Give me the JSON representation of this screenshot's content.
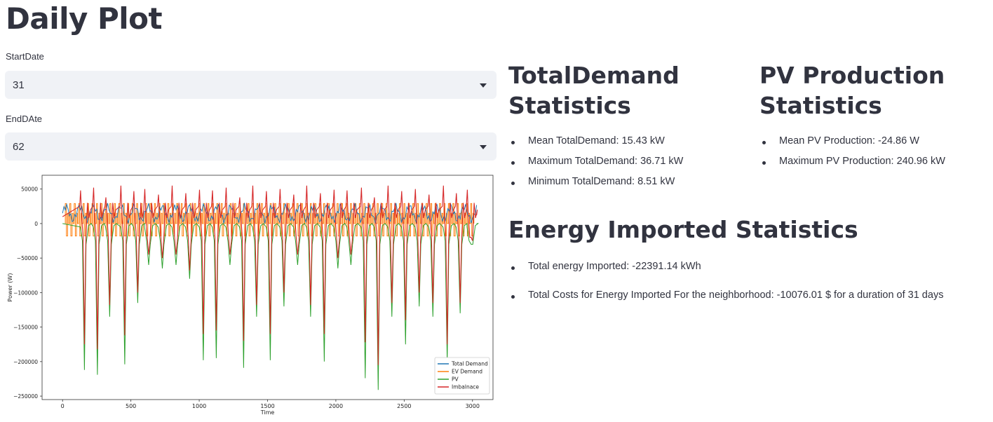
{
  "page": {
    "title": "Daily Plot"
  },
  "controls": {
    "start": {
      "label": "StartDate",
      "value": "31"
    },
    "end": {
      "label": "EndDAte",
      "value": "62"
    }
  },
  "total_demand": {
    "heading": [
      "TotalDemand",
      "Statistics"
    ],
    "items": [
      "Mean TotalDemand: 15.43 kW",
      "Maximum TotalDemand: 36.71 kW",
      "Minimum TotalDemand: 8.51 kW"
    ]
  },
  "pv": {
    "heading": [
      "PV Production",
      "Statistics"
    ],
    "items": [
      "Mean PV Production: -24.86 W",
      "Maximum PV Production: 240.96 kW"
    ]
  },
  "energy": {
    "heading": "Energy Imported Statistics",
    "items": [
      "Total energy Imported: -22391.14 kWh",
      "Total Costs for Energy Imported For the neighborhood: -10076.01 $ for a duration of 31 days"
    ]
  },
  "chart_data": {
    "type": "line",
    "xlabel": "Time",
    "ylabel": "Power (W)",
    "xlim": [
      -150,
      3150
    ],
    "ylim": [
      -255000,
      70000
    ],
    "xticks": [
      0,
      500,
      1000,
      1500,
      2000,
      2500,
      3000
    ],
    "xtick_labels": [
      "0",
      "500",
      "1000",
      "1500",
      "2000",
      "2500",
      "3000"
    ],
    "yticks": [
      50000,
      0,
      -50000,
      -100000,
      -150000,
      -200000,
      -250000
    ],
    "ytick_labels": [
      "50000",
      "0",
      "−50000",
      "−100000",
      "−150000",
      "−200000",
      "−250000"
    ],
    "legend_position": "lower-right",
    "series": [
      {
        "name": "Total Demand",
        "color": "#1f77b4"
      },
      {
        "name": "EV Demand",
        "color": "#ff7f0e"
      },
      {
        "name": "PV",
        "color": "#2ca02c"
      },
      {
        "name": "Imbalnace",
        "color": "#d62728"
      }
    ],
    "pv_troughs": [
      {
        "x": 160,
        "y": -212000
      },
      {
        "x": 255,
        "y": -219000
      },
      {
        "x": 345,
        "y": -135000
      },
      {
        "x": 455,
        "y": -204000
      },
      {
        "x": 550,
        "y": -115000
      },
      {
        "x": 630,
        "y": -60000
      },
      {
        "x": 730,
        "y": -65000
      },
      {
        "x": 830,
        "y": -60000
      },
      {
        "x": 930,
        "y": -80000
      },
      {
        "x": 1030,
        "y": -198000
      },
      {
        "x": 1125,
        "y": -195000
      },
      {
        "x": 1225,
        "y": -60000
      },
      {
        "x": 1325,
        "y": -209000
      },
      {
        "x": 1420,
        "y": -135000
      },
      {
        "x": 1520,
        "y": -198000
      },
      {
        "x": 1620,
        "y": -120000
      },
      {
        "x": 1720,
        "y": -60000
      },
      {
        "x": 1815,
        "y": -135000
      },
      {
        "x": 1915,
        "y": -200000
      },
      {
        "x": 2015,
        "y": -65000
      },
      {
        "x": 2110,
        "y": -60000
      },
      {
        "x": 2215,
        "y": -224000
      },
      {
        "x": 2310,
        "y": -241000
      },
      {
        "x": 2410,
        "y": -135000
      },
      {
        "x": 2510,
        "y": -175000
      },
      {
        "x": 2610,
        "y": -120000
      },
      {
        "x": 2710,
        "y": -135000
      },
      {
        "x": 2815,
        "y": -200000
      },
      {
        "x": 2910,
        "y": -130000
      },
      {
        "x": 2990,
        "y": -30000
      }
    ],
    "imbalance_troughs": [
      {
        "x": 160,
        "y": -175000
      },
      {
        "x": 255,
        "y": -182000
      },
      {
        "x": 345,
        "y": -118000
      },
      {
        "x": 455,
        "y": -162000
      },
      {
        "x": 550,
        "y": -100000
      },
      {
        "x": 630,
        "y": -45000
      },
      {
        "x": 730,
        "y": -50000
      },
      {
        "x": 830,
        "y": -45000
      },
      {
        "x": 930,
        "y": -68000
      },
      {
        "x": 1030,
        "y": -160000
      },
      {
        "x": 1125,
        "y": -155000
      },
      {
        "x": 1225,
        "y": -45000
      },
      {
        "x": 1325,
        "y": -170000
      },
      {
        "x": 1420,
        "y": -118000
      },
      {
        "x": 1520,
        "y": -160000
      },
      {
        "x": 1620,
        "y": -100000
      },
      {
        "x": 1720,
        "y": -45000
      },
      {
        "x": 1815,
        "y": -118000
      },
      {
        "x": 1915,
        "y": -160000
      },
      {
        "x": 2015,
        "y": -50000
      },
      {
        "x": 2110,
        "y": -45000
      },
      {
        "x": 2215,
        "y": -172000
      },
      {
        "x": 2310,
        "y": -205000
      },
      {
        "x": 2410,
        "y": -115000
      },
      {
        "x": 2510,
        "y": -140000
      },
      {
        "x": 2610,
        "y": -100000
      },
      {
        "x": 2710,
        "y": -115000
      },
      {
        "x": 2815,
        "y": -175000
      },
      {
        "x": 2910,
        "y": -115000
      },
      {
        "x": 2990,
        "y": -20000
      }
    ]
  }
}
